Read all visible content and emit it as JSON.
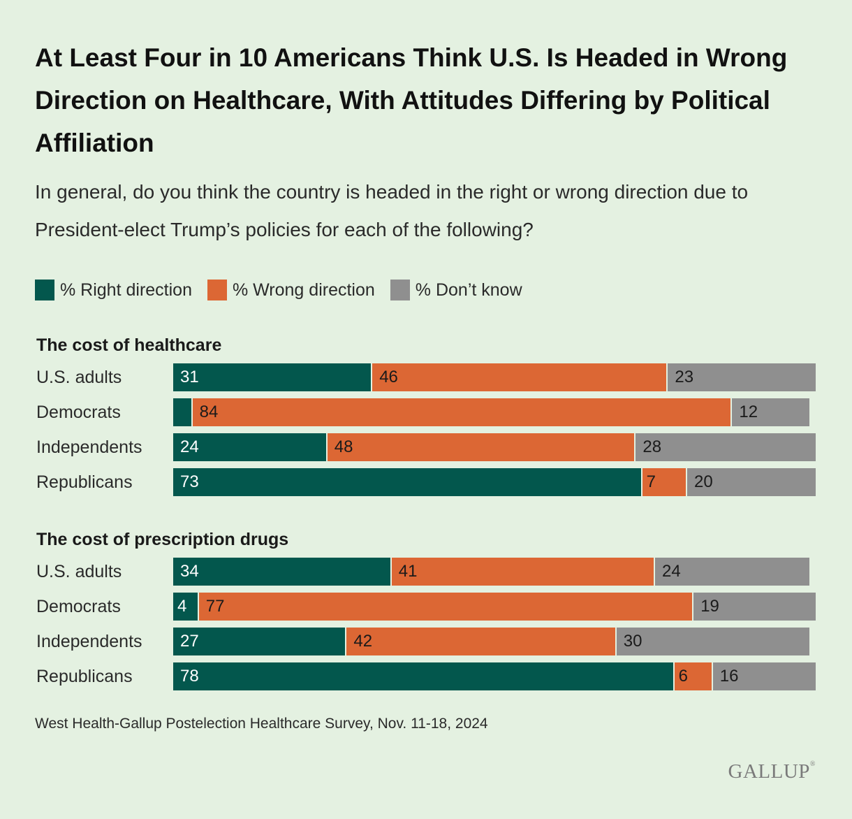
{
  "title": "At Least Four in 10 Americans Think U.S. Is Headed in Wrong Direction on Healthcare, With Attitudes Differing by Political Affiliation",
  "subtitle": "In general, do you think the country is headed in the right or wrong direction due to President-elect Trump’s policies for each of the following?",
  "legend": {
    "right": "% Right direction",
    "wrong": "% Wrong direction",
    "dk": "% Don’t know"
  },
  "colors": {
    "right": "#03574d",
    "wrong": "#dc6734",
    "dk": "#8f8f8f",
    "background": "#e4f1e1"
  },
  "source": "West Health-Gallup Postelection Healthcare Survey, Nov. 11-18, 2024",
  "logo": "GALLUP",
  "chart_data": {
    "type": "bar",
    "orientation": "horizontal",
    "stacked": true,
    "series_names": [
      "% Right direction",
      "% Wrong direction",
      "% Don’t know"
    ],
    "groups": [
      {
        "title": "The cost of healthcare",
        "rows": [
          {
            "label": "U.S. adults",
            "values": [
              31,
              46,
              23
            ],
            "value_labels": [
              "31",
              "46",
              "23"
            ]
          },
          {
            "label": "Democrats",
            "values": [
              3,
              84,
              12
            ],
            "value_labels": [
              "",
              "84",
              "12"
            ]
          },
          {
            "label": "Independents",
            "values": [
              24,
              48,
              28
            ],
            "value_labels": [
              "24",
              "48",
              "28"
            ]
          },
          {
            "label": "Republicans",
            "values": [
              73,
              7,
              20
            ],
            "value_labels": [
              "73",
              "7",
              "20"
            ]
          }
        ]
      },
      {
        "title": "The cost of prescription drugs",
        "rows": [
          {
            "label": "U.S. adults",
            "values": [
              34,
              41,
              24
            ],
            "value_labels": [
              "34",
              "41",
              "24"
            ]
          },
          {
            "label": "Democrats",
            "values": [
              4,
              77,
              19
            ],
            "value_labels": [
              "4",
              "77",
              "19"
            ]
          },
          {
            "label": "Independents",
            "values": [
              27,
              42,
              30
            ],
            "value_labels": [
              "27",
              "42",
              "30"
            ]
          },
          {
            "label": "Republicans",
            "values": [
              78,
              6,
              16
            ],
            "value_labels": [
              "78",
              "6",
              "16"
            ]
          }
        ]
      }
    ]
  }
}
